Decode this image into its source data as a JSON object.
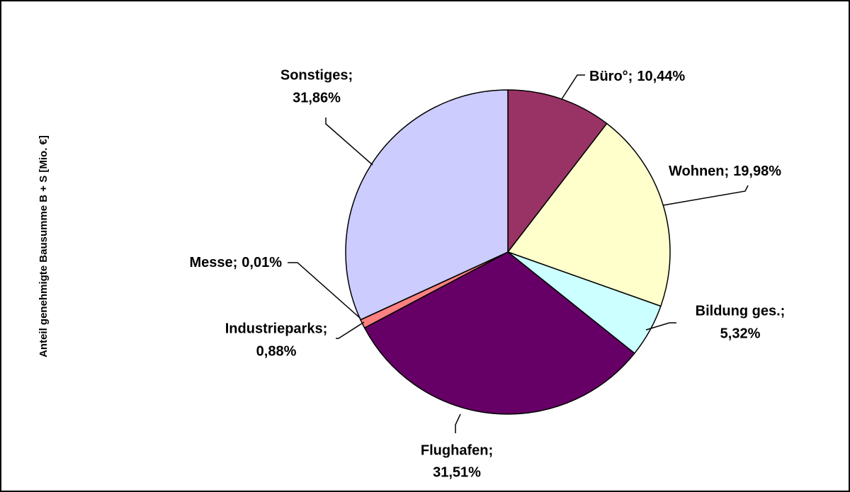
{
  "chart_data": {
    "type": "pie",
    "y_axis_label": "Anteil genehmigte Bausumme B + S [Mio. €]",
    "categories": [
      "Büro°;",
      "Wohnen;",
      "Bildung ges.;",
      "Flughafen;",
      "Industrieparks;",
      "Messe;",
      "Sonstiges;"
    ],
    "values": [
      10.44,
      19.98,
      5.32,
      31.51,
      0.88,
      0.01,
      31.86
    ],
    "value_labels": [
      "10,44%",
      "19,98%",
      "5,32%",
      "31,51%",
      "0,88%",
      "0,01%",
      "31,86%"
    ],
    "colors": [
      "#993366",
      "#ffffcc",
      "#ccffff",
      "#660066",
      "#ff8080",
      "#0066cc",
      "#ccccff"
    ]
  }
}
